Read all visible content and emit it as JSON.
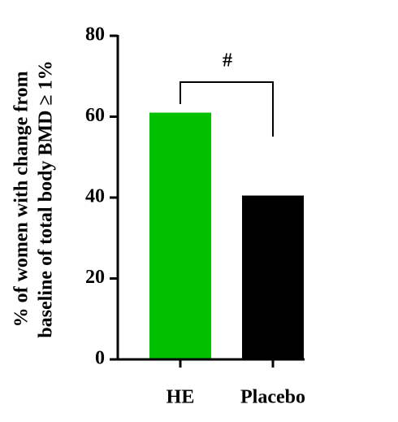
{
  "chart_data": {
    "type": "bar",
    "ylabel": [
      "% of women with change from",
      "baseline of total body BMD ≥ 1%"
    ],
    "categories": [
      "HE",
      "Placebo"
    ],
    "values": [
      61,
      40.5
    ],
    "colors": [
      "#00c000",
      "#000000"
    ],
    "ylim": [
      0,
      80
    ],
    "yticks": [
      0,
      20,
      40,
      60,
      80
    ],
    "annotation": "#"
  }
}
